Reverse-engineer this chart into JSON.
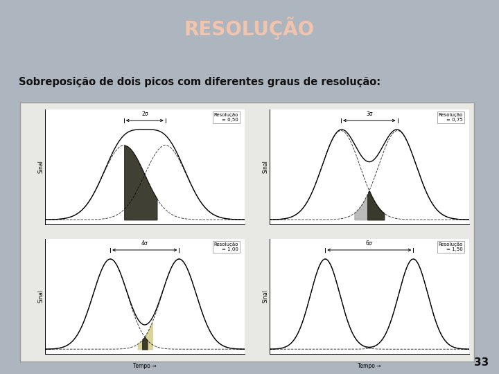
{
  "title": "RESOLUÇÃO",
  "title_bg": "#6d7b8d",
  "title_color": "#f2c4ae",
  "slide_bg": "#adb5bf",
  "bullet_text": " Sobreposição de dois picos com diferentes graus de resolução:",
  "resolution_labels": [
    "Resolução\n= 0,50",
    "Resolução\n= 0,75",
    "Resolução\n= 1,00",
    "Resolução\n= 1,50"
  ],
  "separation_labels": [
    "2σ",
    "3σ",
    "4σ",
    "6σ"
  ],
  "separations": [
    2,
    3,
    4,
    6
  ],
  "x_label": "Tempo",
  "y_label": "Sinal",
  "page_number": "33",
  "panel_bg": "#f5f3ef",
  "outer_box_bg": "#cdd0d4",
  "inner_box_bg": "#dde0e4"
}
